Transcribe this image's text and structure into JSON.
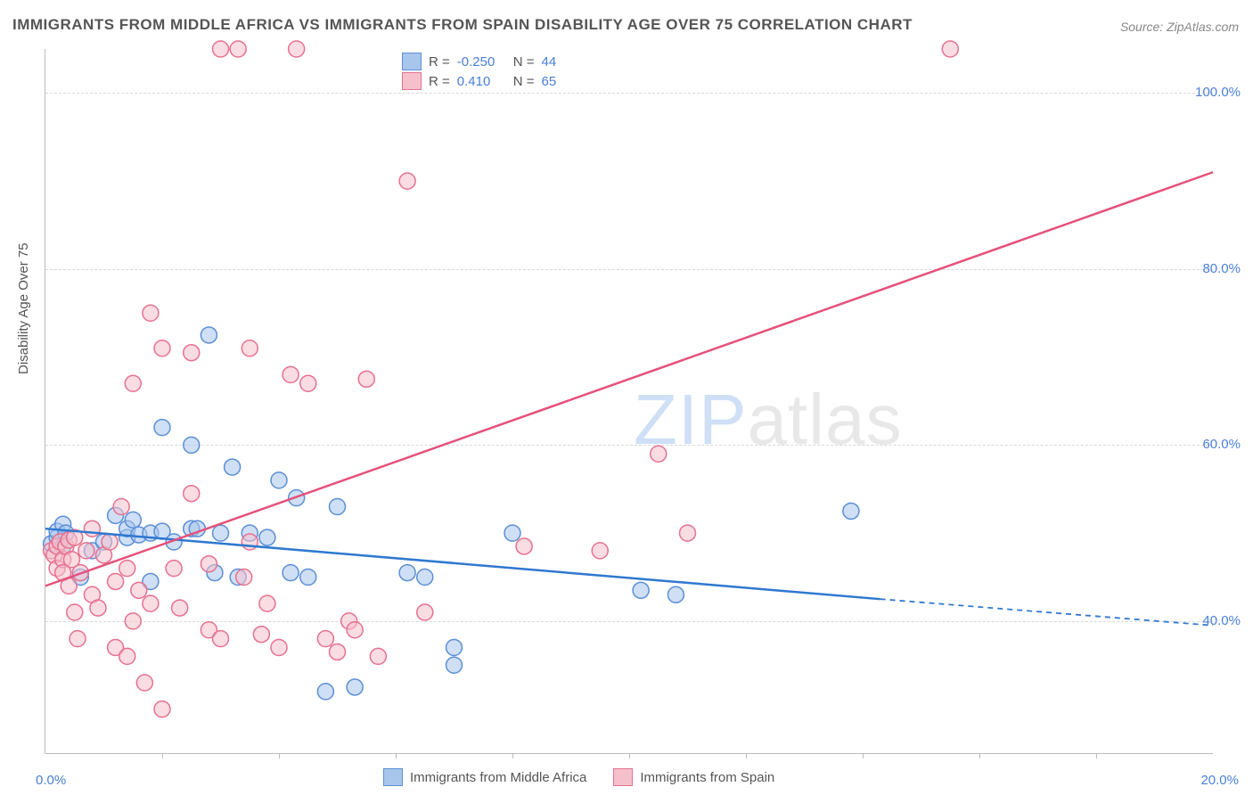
{
  "title": "IMMIGRANTS FROM MIDDLE AFRICA VS IMMIGRANTS FROM SPAIN DISABILITY AGE OVER 75 CORRELATION CHART",
  "source": "Source: ZipAtlas.com",
  "watermark_prefix": "ZIP",
  "watermark_suffix": "atlas",
  "chart": {
    "type": "scatter",
    "ylabel": "Disability Age Over 75",
    "xlim": [
      0,
      20
    ],
    "ylim": [
      25,
      105
    ],
    "x_tick_labels": [
      "0.0%",
      "20.0%"
    ],
    "y_tick_labels": [
      "40.0%",
      "60.0%",
      "80.0%",
      "100.0%"
    ],
    "y_tick_values": [
      40,
      60,
      80,
      100
    ],
    "x_minor_ticks": [
      2,
      4,
      6,
      8,
      10,
      12,
      14,
      16,
      18
    ],
    "background_color": "#ffffff",
    "grid_color": "#d8d8d8",
    "marker_radius": 9,
    "marker_opacity": 0.55,
    "marker_stroke_width": 1.5,
    "line_width": 2.5,
    "series": [
      {
        "name": "Immigrants from Middle Africa",
        "color_fill": "#a8c5ec",
        "color_stroke": "#5b8fd6",
        "line_color": "#2f78d0",
        "R": "-0.250",
        "N": "44",
        "trend": {
          "x1": 0,
          "y1": 50.5,
          "x2": 14.3,
          "y2": 42.5,
          "ext_x2": 20,
          "ext_y2": 39.5
        },
        "points": [
          [
            0.1,
            48.8
          ],
          [
            0.2,
            49.5
          ],
          [
            0.2,
            50.2
          ],
          [
            0.3,
            48.5
          ],
          [
            0.3,
            51.0
          ],
          [
            0.35,
            50.0
          ],
          [
            0.6,
            45.0
          ],
          [
            0.8,
            48.0
          ],
          [
            1.0,
            49.0
          ],
          [
            1.2,
            52.0
          ],
          [
            1.4,
            49.5
          ],
          [
            1.4,
            50.5
          ],
          [
            1.5,
            51.5
          ],
          [
            1.6,
            49.8
          ],
          [
            1.8,
            44.5
          ],
          [
            1.8,
            50.0
          ],
          [
            2.0,
            50.2
          ],
          [
            2.0,
            62.0
          ],
          [
            2.2,
            49.0
          ],
          [
            2.5,
            60.0
          ],
          [
            2.5,
            50.5
          ],
          [
            2.8,
            72.5
          ],
          [
            2.9,
            45.5
          ],
          [
            3.0,
            50.0
          ],
          [
            3.2,
            57.5
          ],
          [
            3.3,
            45.0
          ],
          [
            3.5,
            50.0
          ],
          [
            3.8,
            49.5
          ],
          [
            4.0,
            56.0
          ],
          [
            4.2,
            45.5
          ],
          [
            4.3,
            54.0
          ],
          [
            4.5,
            45.0
          ],
          [
            4.8,
            32.0
          ],
          [
            5.0,
            53.0
          ],
          [
            5.3,
            32.5
          ],
          [
            6.2,
            45.5
          ],
          [
            6.5,
            45.0
          ],
          [
            7.0,
            37.0
          ],
          [
            7.0,
            35.0
          ],
          [
            8.0,
            50.0
          ],
          [
            10.2,
            43.5
          ],
          [
            10.8,
            43.0
          ],
          [
            13.8,
            52.5
          ],
          [
            2.6,
            50.5
          ]
        ]
      },
      {
        "name": "Immigrants from Spain",
        "color_fill": "#f5c0cc",
        "color_stroke": "#e5718f",
        "line_color": "#e5527a",
        "R": "0.410",
        "N": "65",
        "trend": {
          "x1": 0,
          "y1": 44.0,
          "x2": 20,
          "y2": 91.0
        },
        "points": [
          [
            0.1,
            48.0
          ],
          [
            0.15,
            47.5
          ],
          [
            0.2,
            48.5
          ],
          [
            0.2,
            46.0
          ],
          [
            0.25,
            49.0
          ],
          [
            0.3,
            47.0
          ],
          [
            0.3,
            45.5
          ],
          [
            0.35,
            48.5
          ],
          [
            0.4,
            49.2
          ],
          [
            0.4,
            44.0
          ],
          [
            0.45,
            47.0
          ],
          [
            0.5,
            41.0
          ],
          [
            0.5,
            49.5
          ],
          [
            0.55,
            38.0
          ],
          [
            0.6,
            45.5
          ],
          [
            0.7,
            48.0
          ],
          [
            0.8,
            43.0
          ],
          [
            0.8,
            50.5
          ],
          [
            0.9,
            41.5
          ],
          [
            1.0,
            47.5
          ],
          [
            1.1,
            49.0
          ],
          [
            1.2,
            37.0
          ],
          [
            1.2,
            44.5
          ],
          [
            1.3,
            53.0
          ],
          [
            1.4,
            36.0
          ],
          [
            1.4,
            46.0
          ],
          [
            1.5,
            67.0
          ],
          [
            1.5,
            40.0
          ],
          [
            1.6,
            43.5
          ],
          [
            1.7,
            33.0
          ],
          [
            1.8,
            75.0
          ],
          [
            1.8,
            42.0
          ],
          [
            2.0,
            71.0
          ],
          [
            2.0,
            30.0
          ],
          [
            2.2,
            46.0
          ],
          [
            2.3,
            41.5
          ],
          [
            2.5,
            54.5
          ],
          [
            2.5,
            70.5
          ],
          [
            2.8,
            39.0
          ],
          [
            2.8,
            46.5
          ],
          [
            3.0,
            105.0
          ],
          [
            3.0,
            38.0
          ],
          [
            3.3,
            105.0
          ],
          [
            3.4,
            45.0
          ],
          [
            3.5,
            71.0
          ],
          [
            3.5,
            49.0
          ],
          [
            3.7,
            38.5
          ],
          [
            3.8,
            42.0
          ],
          [
            4.0,
            37.0
          ],
          [
            4.2,
            68.0
          ],
          [
            4.3,
            105.0
          ],
          [
            4.5,
            67.0
          ],
          [
            4.8,
            38.0
          ],
          [
            5.0,
            36.5
          ],
          [
            5.2,
            40.0
          ],
          [
            5.3,
            39.0
          ],
          [
            5.5,
            67.5
          ],
          [
            5.7,
            36.0
          ],
          [
            6.2,
            90.0
          ],
          [
            6.5,
            41.0
          ],
          [
            8.2,
            48.5
          ],
          [
            9.5,
            48.0
          ],
          [
            10.5,
            59.0
          ],
          [
            11.0,
            50.0
          ],
          [
            15.5,
            105.0
          ]
        ]
      }
    ]
  },
  "legend_top": {
    "r_label": "R =",
    "n_label": "N ="
  },
  "colors": {
    "text_gray": "#555555",
    "text_light": "#888888",
    "tick_blue": "#4a7fd6"
  }
}
